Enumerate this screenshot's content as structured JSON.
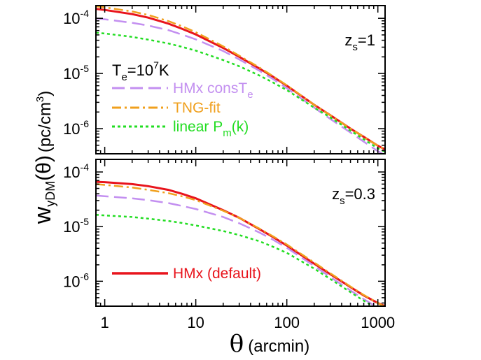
{
  "chart_data": [
    {
      "type": "line",
      "panel": "top",
      "annotation": {
        "z_label": "z",
        "z_sub": "s",
        "z_value": "=1"
      },
      "temp_label": {
        "base": "T",
        "sub": "e",
        "value": "=10",
        "exp": "7",
        "unit": "K"
      },
      "xscale": "log",
      "yscale": "log",
      "xlim": [
        0.8,
        1200
      ],
      "ylim": [
        3.5e-07,
        0.00017
      ],
      "y_ticks": [
        {
          "value": 0.0001,
          "base": "10",
          "exp": "-4"
        },
        {
          "value": 1e-05,
          "base": "10",
          "exp": "-5"
        },
        {
          "value": 1e-06,
          "base": "10",
          "exp": "-6"
        }
      ],
      "legend_placement": "left",
      "series": [
        {
          "key": "hmx_default",
          "color": "#e8141c",
          "x": [
            0.8,
            1,
            2,
            3,
            5,
            7,
            10,
            20,
            30,
            50,
            70,
            100,
            200,
            300,
            500,
            700,
            1000,
            1200
          ],
          "y": [
            0.000148,
            0.000142,
            0.000119,
            0.000103,
            8e-05,
            6.5e-05,
            5.1e-05,
            2.9e-05,
            2e-05,
            1.23e-05,
            8.8e-06,
            6e-06,
            2.7e-06,
            1.75e-06,
            1e-06,
            7.1e-07,
            4.9e-07,
            4.2e-07
          ]
        },
        {
          "name": "HMx consT",
          "name_sub": "e",
          "key": "hmx_const",
          "color": "#c38ff0",
          "x": [
            0.8,
            1,
            2,
            3,
            5,
            7,
            10,
            20,
            30,
            50,
            70,
            100,
            200,
            300,
            500,
            700,
            1000,
            1200
          ],
          "y": [
            0.0001,
            9.6e-05,
            8.3e-05,
            7.4e-05,
            6.1e-05,
            5.1e-05,
            4.15e-05,
            2.55e-05,
            1.8e-05,
            1.12e-05,
            8e-06,
            5.4e-06,
            2.4e-06,
            1.5e-06,
            8.5e-07,
            5.8e-07,
            3.9e-07,
            3.3e-07
          ]
        },
        {
          "name": "TNG-fit",
          "key": "tng_fit",
          "color": "#f0a01e",
          "x": [
            0.8,
            1,
            2,
            3,
            5,
            7,
            10,
            20,
            30,
            50,
            70,
            100,
            200,
            300,
            500,
            700,
            1000,
            1200
          ],
          "y": [
            0.000165,
            0.000158,
            0.000133,
            0.000115,
            8.9e-05,
            7.2e-05,
            5.6e-05,
            3.1e-05,
            2.1e-05,
            1.28e-05,
            9e-06,
            6.1e-06,
            2.7e-06,
            1.75e-06,
            1e-06,
            7.1e-07,
            4.9e-07,
            4.2e-07
          ]
        },
        {
          "name": "linear P",
          "name_sub": "m",
          "name_suffix": "(k)",
          "key": "linear_pm",
          "color": "#22dd22",
          "x": [
            0.8,
            1,
            2,
            3,
            5,
            7,
            10,
            20,
            30,
            50,
            70,
            100,
            200,
            300,
            500,
            700,
            1000,
            1200
          ],
          "y": [
            5.5e-05,
            5.3e-05,
            4.6e-05,
            4.1e-05,
            3.5e-05,
            3.05e-05,
            2.6e-05,
            1.75e-05,
            1.35e-05,
            9.2e-06,
            6.9e-06,
            5e-06,
            2.4e-06,
            1.6e-06,
            9.2e-07,
            6.4e-07,
            4.4e-07,
            3.8e-07
          ]
        }
      ]
    },
    {
      "type": "line",
      "panel": "bottom",
      "annotation": {
        "z_label": "z",
        "z_sub": "s",
        "z_value": "=0.3"
      },
      "xscale": "log",
      "yscale": "log",
      "xlim": [
        0.8,
        1200
      ],
      "ylim": [
        3.5e-07,
        0.00017
      ],
      "y_ticks": [
        {
          "value": 0.0001,
          "base": "10",
          "exp": "-4"
        },
        {
          "value": 1e-05,
          "base": "10",
          "exp": "-5"
        },
        {
          "value": 1e-06,
          "base": "10",
          "exp": "-6"
        }
      ],
      "legend_placement": "bottom-left",
      "series": [
        {
          "name": "HMx (default)",
          "key": "hmx_default",
          "color": "#e8141c",
          "x": [
            0.8,
            1,
            2,
            3,
            5,
            7,
            10,
            20,
            30,
            50,
            70,
            100,
            200,
            300,
            500,
            700,
            1000,
            1200
          ],
          "y": [
            6.6e-05,
            6.5e-05,
            6e-05,
            5.5e-05,
            4.7e-05,
            4e-05,
            3.3e-05,
            2e-05,
            1.45e-05,
            9e-06,
            6.5e-06,
            4.5e-06,
            2.1e-06,
            1.35e-06,
            7.8e-07,
            5.5e-07,
            4e-07,
            3.5e-07
          ]
        },
        {
          "key": "hmx_const",
          "color": "#c38ff0",
          "x": [
            0.8,
            1,
            2,
            3,
            5,
            7,
            10,
            20,
            30,
            50,
            70,
            100,
            200,
            300,
            500,
            700,
            1000,
            1200
          ],
          "y": [
            3.7e-05,
            3.6e-05,
            3.3e-05,
            3.05e-05,
            2.7e-05,
            2.4e-05,
            2.1e-05,
            1.5e-05,
            1.15e-05,
            7.8e-06,
            5.8e-06,
            4.1e-06,
            1.9e-06,
            1.2e-06,
            6.8e-07,
            4.7e-07,
            3.3e-07,
            2.8e-07
          ]
        },
        {
          "key": "tng_fit",
          "color": "#f0a01e",
          "x": [
            0.8,
            1,
            2,
            3,
            5,
            7,
            10,
            20,
            30,
            50,
            70,
            100,
            200,
            300,
            500,
            700,
            1000,
            1200
          ],
          "y": [
            6e-05,
            5.8e-05,
            5.2e-05,
            4.7e-05,
            4.1e-05,
            3.6e-05,
            3.05e-05,
            1.95e-05,
            1.45e-05,
            9.2e-06,
            6.7e-06,
            4.7e-06,
            2.2e-06,
            1.4e-06,
            8e-07,
            5.6e-07,
            4e-07,
            3.4e-07
          ]
        },
        {
          "key": "linear_pm",
          "color": "#22dd22",
          "x": [
            0.8,
            1,
            2,
            3,
            5,
            7,
            10,
            20,
            30,
            50,
            70,
            100,
            200,
            300,
            500,
            700,
            1000,
            1200
          ],
          "y": [
            1.65e-05,
            1.6e-05,
            1.5e-05,
            1.4e-05,
            1.27e-05,
            1.17e-05,
            1.05e-05,
            8.3e-06,
            7e-06,
            5.4e-06,
            4.3e-06,
            3.3e-06,
            1.7e-06,
            1.1e-06,
            6.3e-07,
            4.4e-07,
            3.1e-07,
            2.7e-07
          ]
        }
      ]
    }
  ],
  "x_axis": {
    "label_symbol": "θ",
    "label_unit": "(arcmin)",
    "ticks": [
      {
        "value": 1,
        "label": "1"
      },
      {
        "value": 10,
        "label": "10"
      },
      {
        "value": 100,
        "label": "100"
      },
      {
        "value": 1000,
        "label": "1000"
      }
    ]
  },
  "y_axis": {
    "label_w": "w",
    "label_sub": "yDM",
    "label_theta": "(θ)",
    "label_unit": "(pc/cm",
    "label_exp": "3",
    "label_close": ")"
  }
}
